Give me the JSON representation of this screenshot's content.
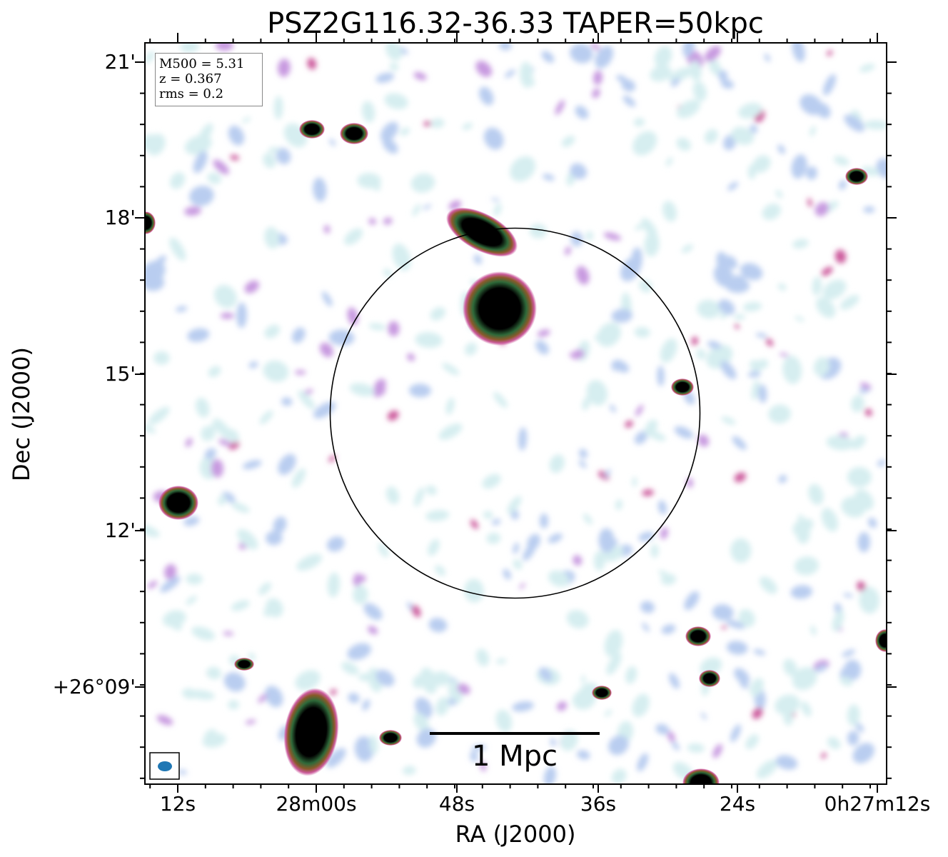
{
  "title": "PSZ2G116.32-36.33 TAPER=50kpc",
  "axes": {
    "xlabel": "RA (J2000)",
    "ylabel": "Dec (J2000)",
    "xticks": [
      "12s",
      "28m00s",
      "48s",
      "36s",
      "24s",
      "0h27m12s"
    ],
    "yticks": [
      "21'",
      "18'",
      "15'",
      "12'",
      "+26°09'"
    ]
  },
  "info": {
    "line1": "M500 = 5.31",
    "line2": "z = 0.367",
    "line3": "rms = 0.2"
  },
  "scalebar": {
    "label": "1 Mpc"
  },
  "colors": {
    "frame": "#000000",
    "beam": "#1f77b4",
    "colormap": [
      "#d6eef0",
      "#b9cdf0",
      "#c89ae0",
      "#cc5a9c",
      "#8a5a2a",
      "#2f6a3a",
      "#000000"
    ]
  }
}
